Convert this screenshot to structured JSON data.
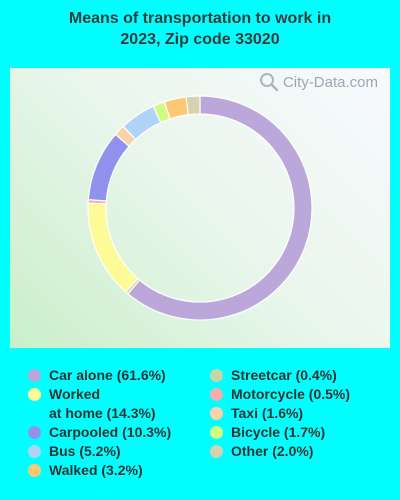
{
  "title_line1": "Means of transportation to work in",
  "title_line2": "2023, Zip code 33020",
  "watermark": "City-Data.com",
  "chart_data": {
    "type": "pie",
    "style": "donut",
    "title": "Means of transportation to work in 2023, Zip code 33020",
    "slices": [
      {
        "label": "Car alone",
        "value": 61.6,
        "legend": "Car alone (61.6%)",
        "color": "#bba7da"
      },
      {
        "label": "Streetcar",
        "value": 0.4,
        "legend": "Streetcar (0.4%)",
        "color": "#c7d6a9"
      },
      {
        "label": "Worked at home",
        "value": 14.3,
        "legend": "Worked\nat home (14.3%)",
        "color": "#fdfa98"
      },
      {
        "label": "Motorcycle",
        "value": 0.5,
        "legend": "Motorcycle (0.5%)",
        "color": "#f3aeae"
      },
      {
        "label": "Carpooled",
        "value": 10.3,
        "legend": "Carpooled (10.3%)",
        "color": "#9192ee"
      },
      {
        "label": "Taxi",
        "value": 1.6,
        "legend": "Taxi (1.6%)",
        "color": "#fbd1a7"
      },
      {
        "label": "Bus",
        "value": 5.2,
        "legend": "Bus (5.2%)",
        "color": "#aed4f8"
      },
      {
        "label": "Bicycle",
        "value": 1.7,
        "legend": "Bicycle (1.7%)",
        "color": "#d3fa85"
      },
      {
        "label": "Walked",
        "value": 3.2,
        "legend": "Walked (3.2%)",
        "color": "#fdc874"
      },
      {
        "label": "Other",
        "value": 2.0,
        "legend": "Other (2.0%)",
        "color": "#d5d1b2"
      }
    ],
    "legend_left": [
      0,
      2,
      4,
      6,
      8
    ],
    "legend_right": [
      1,
      3,
      5,
      7,
      9
    ]
  }
}
